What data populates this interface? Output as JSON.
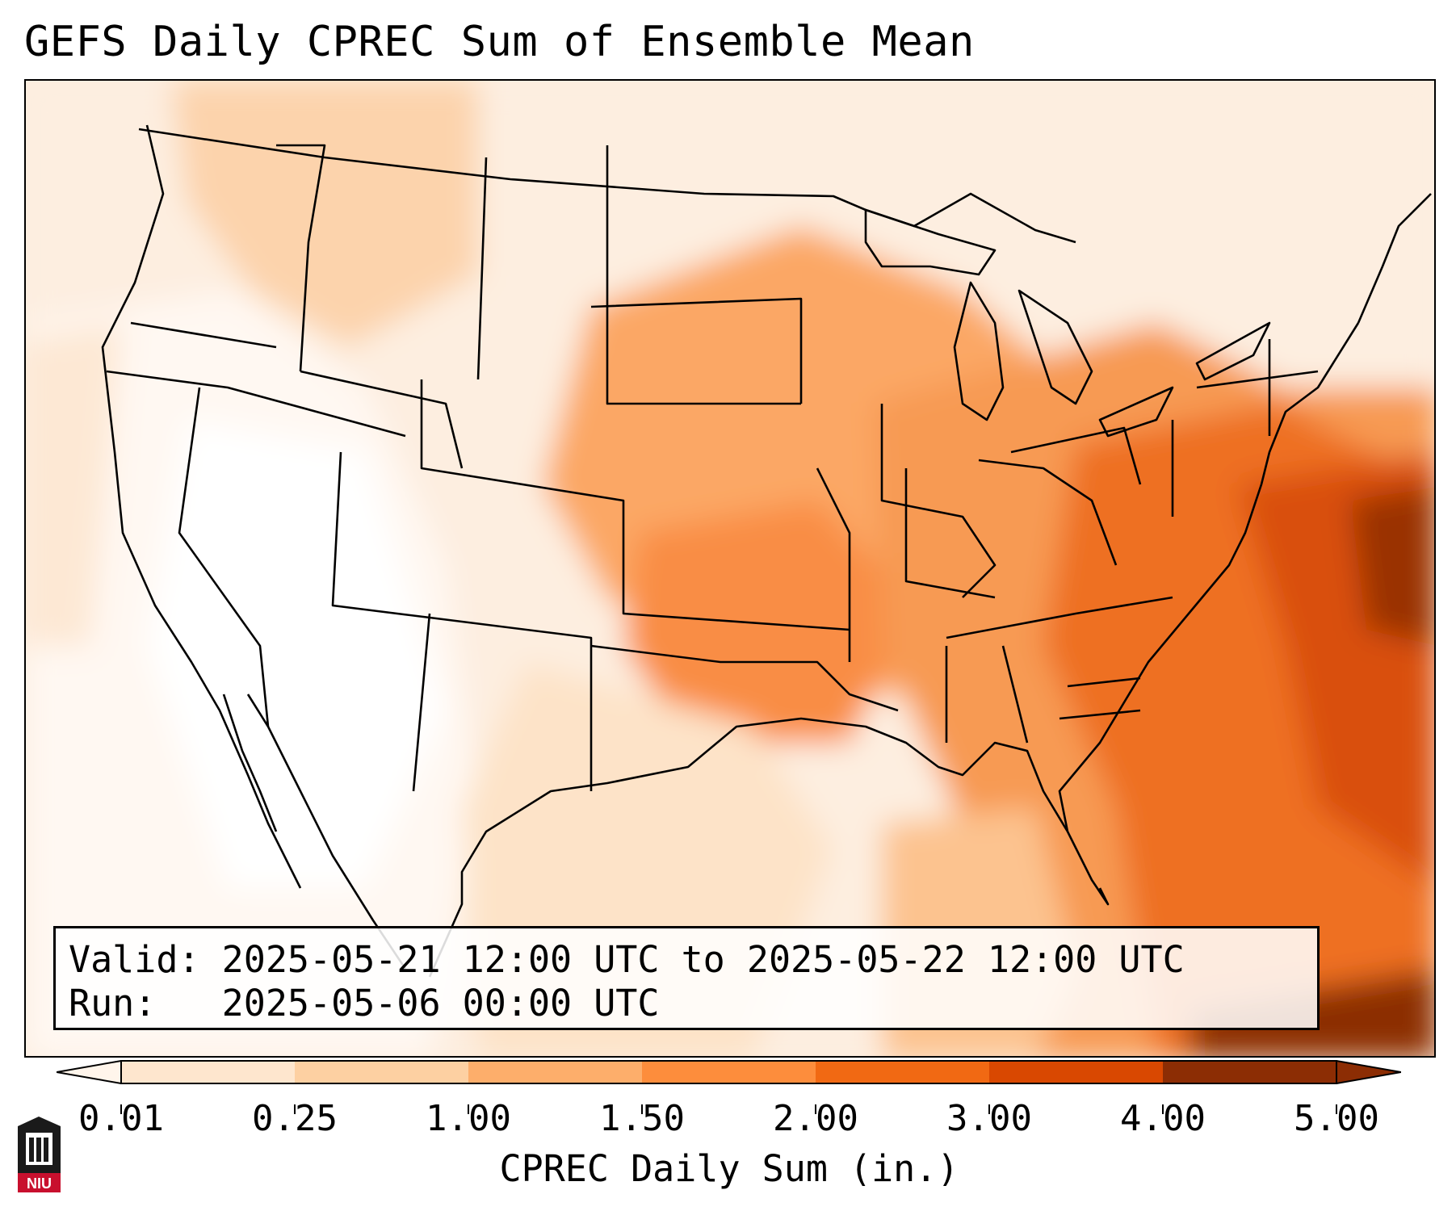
{
  "title": "GEFS Daily CPREC Sum of Ensemble Mean",
  "info": {
    "valid_line": "Valid: 2025-05-21 12:00 UTC to 2025-05-22 12:00 UTC",
    "run_line": "Run:   2025-05-06 00:00 UTC"
  },
  "colorbar": {
    "title": "CPREC Daily Sum (in.)",
    "ticks": [
      "0.01",
      "0.25",
      "1.00",
      "1.50",
      "2.00",
      "3.00",
      "4.00",
      "5.00"
    ],
    "colors": [
      "#fff5eb",
      "#fee6ce",
      "#fdd0a2",
      "#fdae6b",
      "#fd8d3c",
      "#f16913",
      "#d94801",
      "#8c2d04"
    ]
  },
  "logo": {
    "text": "NIU",
    "icon": "niu-castle-icon"
  }
}
